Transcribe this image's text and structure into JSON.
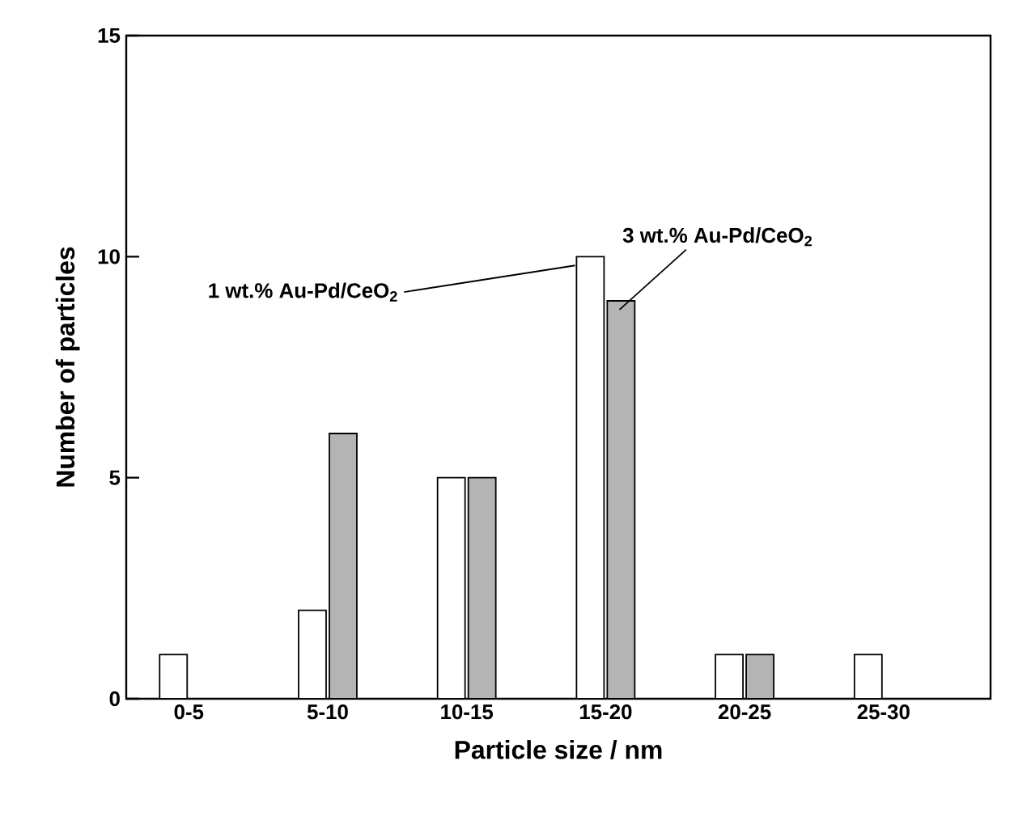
{
  "chart_data": {
    "type": "bar",
    "xlabel": "Particle size / nm",
    "ylabel": "Number of particles",
    "categories": [
      "0-5",
      "5-10",
      "10-15",
      "15-20",
      "20-25",
      "25-30"
    ],
    "series": [
      {
        "name": "1 wt.% Au-Pd/CeO$_{2}$",
        "color": "#ffffff",
        "values": [
          1,
          2,
          5,
          10,
          1,
          1
        ]
      },
      {
        "name": "3 wt.% Au-Pd/CeO$_{2}$",
        "color": "#b4b4b4",
        "values": [
          null,
          6,
          5,
          9,
          1,
          null
        ]
      }
    ],
    "ylim": [
      0,
      15
    ],
    "yticks": [
      0,
      5,
      10,
      15
    ],
    "grid": false,
    "legend": false
  }
}
